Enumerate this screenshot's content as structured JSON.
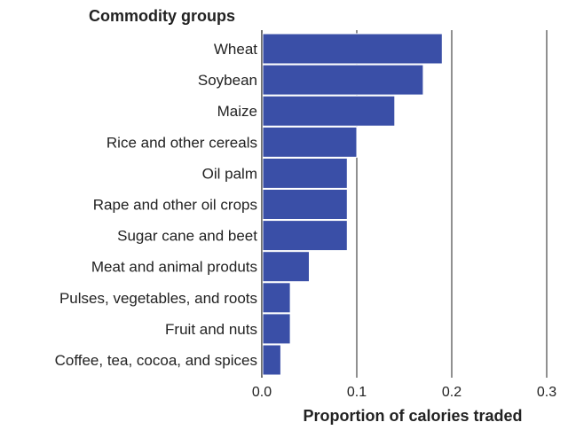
{
  "chart_data": {
    "type": "bar",
    "orientation": "horizontal",
    "title": "Commodity groups",
    "xlabel": "Proportion of calories traded",
    "ylabel": "",
    "categories": [
      "Wheat",
      "Soybean",
      "Maize",
      "Rice and other cereals",
      "Oil palm",
      "Rape and other oil crops",
      "Sugar cane and beet",
      "Meat and animal produts",
      "Pulses, vegetables, and roots",
      "Fruit and nuts",
      "Coffee, tea, cocoa, and spices"
    ],
    "values": [
      0.19,
      0.17,
      0.14,
      0.1,
      0.09,
      0.09,
      0.09,
      0.05,
      0.03,
      0.03,
      0.02
    ],
    "xlim": [
      0,
      0.3
    ],
    "xticks": [
      "0.0",
      "0.1",
      "0.2",
      "0.3"
    ],
    "grid": "vertical lines at ticks",
    "legend": "none",
    "bar_color": "#3a4fa7",
    "bar_edge_color": "#ffffff",
    "gridline_color": "#222222"
  }
}
